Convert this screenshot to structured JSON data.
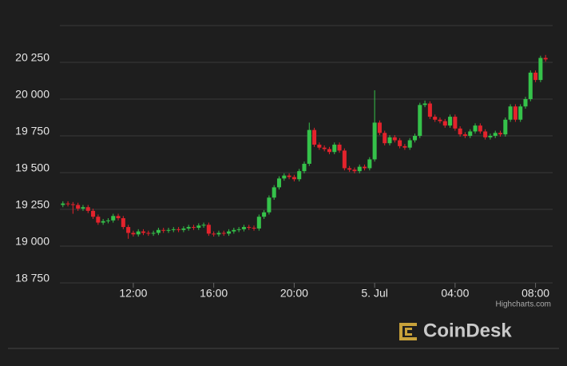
{
  "chart_data": {
    "type": "candlestick",
    "x": [
      8.5,
      8.75,
      9,
      9.25,
      9.5,
      9.75,
      10,
      10.25,
      10.5,
      10.75,
      11,
      11.25,
      11.5,
      11.75,
      12,
      12.25,
      12.5,
      12.75,
      13,
      13.25,
      13.5,
      13.75,
      14,
      14.25,
      14.5,
      14.75,
      15,
      15.25,
      15.5,
      15.75,
      16,
      16.25,
      16.5,
      16.75,
      17,
      17.25,
      17.5,
      17.75,
      18,
      18.25,
      18.5,
      18.75,
      19,
      19.25,
      19.5,
      19.75,
      20,
      20.25,
      20.5,
      20.75,
      21,
      21.25,
      21.5,
      21.75,
      22,
      22.25,
      22.5,
      22.75,
      23,
      23.25,
      23.5,
      23.75,
      24,
      24.25,
      24.5,
      24.75,
      25,
      25.25,
      25.5,
      25.75,
      26,
      26.25,
      26.5,
      26.75,
      27,
      27.25,
      27.5,
      27.75,
      28,
      28.25,
      28.5,
      28.75,
      29,
      29.25,
      29.5,
      29.75,
      30,
      30.25,
      30.5,
      30.75,
      31,
      31.25,
      31.5,
      31.75,
      32,
      32.25,
      32.5
    ],
    "open": [
      19280,
      19290,
      19285,
      19280,
      19255,
      19265,
      19240,
      19200,
      19160,
      19170,
      19175,
      19205,
      19190,
      19130,
      19090,
      19080,
      19100,
      19090,
      19085,
      19090,
      19110,
      19105,
      19110,
      19115,
      19110,
      19120,
      19130,
      19125,
      19140,
      19145,
      19085,
      19080,
      19090,
      19085,
      19100,
      19110,
      19115,
      19130,
      19125,
      19120,
      19200,
      19230,
      19330,
      19400,
      19460,
      19480,
      19470,
      19455,
      19510,
      19560,
      19790,
      19690,
      19670,
      19660,
      19640,
      19690,
      19650,
      19530,
      19520,
      19510,
      19540,
      19530,
      19590,
      19840,
      19770,
      19700,
      19740,
      19720,
      19680,
      19670,
      19720,
      19750,
      19960,
      19970,
      19880,
      19860,
      19850,
      19820,
      19880,
      19800,
      19760,
      19750,
      19780,
      19820,
      19780,
      19740,
      19750,
      19770,
      19760,
      19860,
      19950,
      19860,
      19950,
      20000,
      20180,
      20130,
      20280
    ],
    "high": [
      19305,
      19305,
      19300,
      19295,
      19280,
      19280,
      19255,
      19215,
      19185,
      19190,
      19220,
      19220,
      19205,
      19145,
      19105,
      19115,
      19115,
      19105,
      19105,
      19125,
      19125,
      19125,
      19130,
      19130,
      19135,
      19145,
      19145,
      19155,
      19160,
      19160,
      19100,
      19105,
      19105,
      19115,
      19125,
      19130,
      19145,
      19145,
      19140,
      19215,
      19245,
      19345,
      19415,
      19475,
      19495,
      19495,
      19485,
      19525,
      19575,
      19840,
      19805,
      19705,
      19685,
      19675,
      19705,
      19705,
      19665,
      19545,
      19535,
      19555,
      19555,
      19605,
      20060,
      19855,
      19785,
      19755,
      19755,
      19735,
      19695,
      19735,
      19765,
      19975,
      19990,
      19985,
      19895,
      19875,
      19865,
      19895,
      19895,
      19815,
      19775,
      19795,
      19835,
      19835,
      19795,
      19765,
      19785,
      19785,
      19875,
      19965,
      19965,
      19965,
      20015,
      20195,
      20195,
      20295,
      20300
    ],
    "low": [
      19265,
      19270,
      19220,
      19240,
      19240,
      19225,
      19185,
      19145,
      19145,
      19155,
      19160,
      19175,
      19115,
      19050,
      19065,
      19065,
      19075,
      19070,
      19070,
      19075,
      19090,
      19090,
      19095,
      19095,
      19095,
      19105,
      19110,
      19110,
      19125,
      19070,
      19065,
      19065,
      19070,
      19070,
      19085,
      19095,
      19100,
      19110,
      19105,
      19105,
      19185,
      19215,
      19315,
      19385,
      19445,
      19455,
      19440,
      19440,
      19495,
      19545,
      19675,
      19655,
      19645,
      19625,
      19625,
      19635,
      19515,
      19505,
      19495,
      19495,
      19515,
      19515,
      19575,
      19755,
      19685,
      19685,
      19705,
      19665,
      19655,
      19655,
      19705,
      19735,
      19945,
      19865,
      19845,
      19835,
      19805,
      19805,
      19785,
      19745,
      19735,
      19735,
      19765,
      19765,
      19725,
      19725,
      19735,
      19745,
      19745,
      19845,
      19845,
      19845,
      19935,
      19985,
      20115,
      20115,
      20255
    ],
    "close": [
      19290,
      19285,
      19280,
      19255,
      19265,
      19240,
      19200,
      19160,
      19170,
      19175,
      19205,
      19190,
      19130,
      19090,
      19080,
      19100,
      19090,
      19085,
      19090,
      19110,
      19105,
      19110,
      19115,
      19110,
      19120,
      19130,
      19125,
      19140,
      19145,
      19085,
      19080,
      19090,
      19085,
      19100,
      19110,
      19115,
      19130,
      19125,
      19120,
      19200,
      19230,
      19330,
      19400,
      19460,
      19480,
      19470,
      19455,
      19510,
      19560,
      19790,
      19690,
      19670,
      19660,
      19640,
      19690,
      19650,
      19530,
      19520,
      19510,
      19540,
      19530,
      19590,
      19840,
      19770,
      19700,
      19740,
      19720,
      19680,
      19670,
      19720,
      19750,
      19960,
      19970,
      19880,
      19860,
      19850,
      19820,
      19880,
      19800,
      19760,
      19750,
      19780,
      19820,
      19780,
      19740,
      19750,
      19770,
      19760,
      19860,
      19950,
      19860,
      19950,
      20000,
      20180,
      20130,
      20280,
      20270
    ],
    "up_color": "#35c24a",
    "down_color": "#e3232c",
    "xlim": [
      8.35,
      32.85
    ],
    "xticks": [
      {
        "value": 12,
        "label": "12:00"
      },
      {
        "value": 16,
        "label": "16:00"
      },
      {
        "value": 20,
        "label": "20:00"
      },
      {
        "value": 24,
        "label": "5. Jul"
      },
      {
        "value": 28,
        "label": "04:00"
      },
      {
        "value": 32,
        "label": "08:00"
      }
    ],
    "ylim": [
      18750,
      20500
    ],
    "yticks": [
      {
        "value": 18750,
        "label": "18 750"
      },
      {
        "value": 19000,
        "label": "19 000"
      },
      {
        "value": 19250,
        "label": "19 250"
      },
      {
        "value": 19500,
        "label": "19 500"
      },
      {
        "value": 19750,
        "label": "19 750"
      },
      {
        "value": 20000,
        "label": "20 000"
      },
      {
        "value": 20250,
        "label": "20 250"
      },
      {
        "value": 20500,
        "label": ""
      }
    ],
    "grid": true,
    "credits": "Highcharts.com",
    "watermark": "CoinDesk"
  }
}
